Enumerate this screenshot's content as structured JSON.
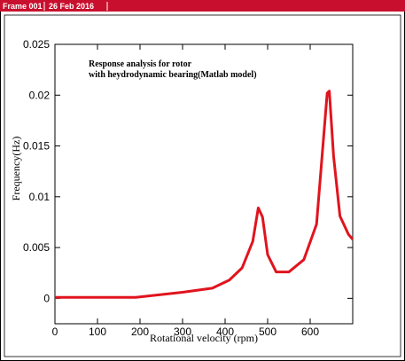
{
  "chart_data": {
    "type": "line",
    "frame_label": "Frame 001",
    "date_label": "26 Feb 2016",
    "annotation": [
      "Response analysis for rotor",
      "with heydrodynamic bearing(Matlab model)"
    ],
    "x_label": "Rotational velocity (rpm)",
    "y_label": "Frequency(Hz)",
    "x": [
      0,
      190,
      300,
      370,
      410,
      440,
      465,
      478,
      488,
      500,
      520,
      550,
      585,
      615,
      640,
      645,
      655,
      670,
      690,
      700
    ],
    "series": [
      {
        "color": "#e0141e",
        "values": [
          0.0001,
          0.0001,
          0.0006,
          0.001,
          0.0018,
          0.003,
          0.0056,
          0.0089,
          0.008,
          0.0043,
          0.0026,
          0.0026,
          0.0038,
          0.0073,
          0.0202,
          0.0204,
          0.014,
          0.0081,
          0.0063,
          0.0058
        ]
      }
    ],
    "xlim": [
      0,
      700
    ],
    "xticks": [
      0,
      100,
      200,
      300,
      400,
      500,
      600
    ],
    "ylim": [
      -0.0025,
      0.025
    ],
    "yticks": [
      0,
      0.005,
      0.01,
      0.015,
      0.02,
      0.025
    ]
  }
}
